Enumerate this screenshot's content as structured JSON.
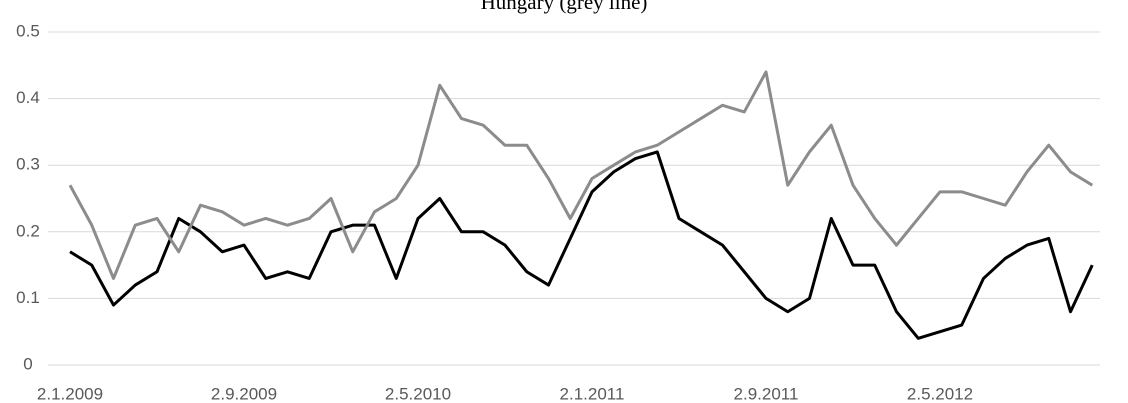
{
  "chart_data": {
    "type": "line",
    "title": "Hungary (grey line)",
    "categories": [
      "2.1.2009",
      null,
      null,
      null,
      null,
      null,
      null,
      null,
      "2.9.2009",
      null,
      null,
      null,
      null,
      null,
      null,
      null,
      "2.5.2010",
      null,
      null,
      null,
      null,
      null,
      null,
      null,
      "2.1.2011",
      null,
      null,
      null,
      null,
      null,
      null,
      null,
      "2.9.2011",
      null,
      null,
      null,
      null,
      null,
      null,
      null,
      "2.5.2012",
      null,
      null,
      null,
      null,
      null,
      null,
      null
    ],
    "series": [
      {
        "color": "#000000",
        "values": [
          0.17,
          0.15,
          0.09,
          0.12,
          0.14,
          0.22,
          0.2,
          0.17,
          0.18,
          0.13,
          0.14,
          0.13,
          0.2,
          0.21,
          0.21,
          0.13,
          0.22,
          0.25,
          0.2,
          0.2,
          0.18,
          0.14,
          0.12,
          0.19,
          0.26,
          0.29,
          0.31,
          0.32,
          0.22,
          0.2,
          0.18,
          0.14,
          0.1,
          0.08,
          0.1,
          0.22,
          0.15,
          0.15,
          0.08,
          0.04,
          0.05,
          0.06,
          0.13,
          0.16,
          0.18,
          0.19,
          0.08,
          0.15
        ]
      },
      {
        "color": "#8c8c8c",
        "values": [
          0.27,
          0.21,
          0.13,
          0.21,
          0.22,
          0.17,
          0.24,
          0.23,
          0.21,
          0.22,
          0.21,
          0.22,
          0.25,
          0.17,
          0.23,
          0.25,
          0.3,
          0.42,
          0.37,
          0.36,
          0.33,
          0.33,
          0.28,
          0.22,
          0.28,
          0.3,
          0.32,
          0.33,
          0.35,
          0.37,
          0.39,
          0.38,
          0.44,
          0.27,
          0.32,
          0.36,
          0.27,
          0.22,
          0.18,
          0.22,
          0.26,
          0.26,
          0.25,
          0.24,
          0.29,
          0.33,
          0.29,
          0.27
        ]
      }
    ],
    "ylim": [
      0,
      0.5
    ],
    "yticks": [
      0,
      0.1,
      0.2,
      0.3,
      0.4,
      0.5
    ],
    "grid": true
  }
}
